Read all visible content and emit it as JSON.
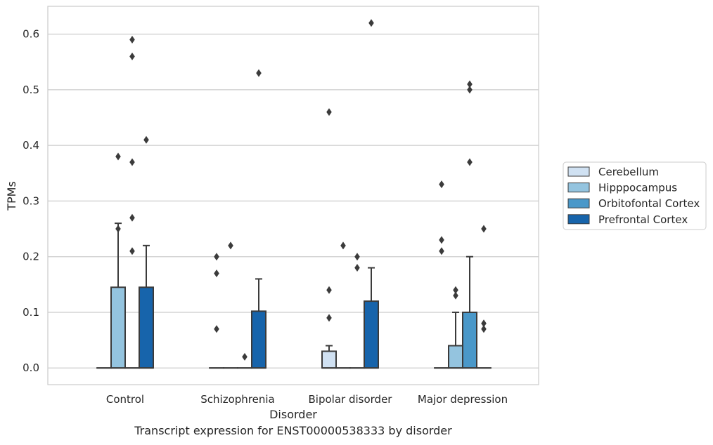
{
  "caption": "Transcript expression for ENST00000538333 by disorder",
  "chart_data": {
    "type": "box",
    "xlabel": "Disorder",
    "ylabel": "TPMs",
    "ylim": [
      -0.03,
      0.65
    ],
    "yticks": [
      0.0,
      0.1,
      0.2,
      0.3,
      0.4,
      0.5,
      0.6
    ],
    "ytick_labels": [
      "0.0",
      "0.1",
      "0.2",
      "0.3",
      "0.4",
      "0.5",
      "0.6"
    ],
    "grid": "horizontal",
    "legend_position": "right",
    "categories": [
      "Control",
      "Schizophrenia",
      "Bipolar disorder",
      "Major depression"
    ],
    "series": [
      {
        "name": "Cerebellum",
        "color": "#d0e1f2",
        "boxes": [
          {
            "q1": 0,
            "q3": 0,
            "median": 0,
            "whisker_low": 0,
            "whisker_high": 0,
            "outliers": []
          },
          {
            "q1": 0,
            "q3": 0,
            "median": 0,
            "whisker_low": 0,
            "whisker_high": 0,
            "outliers": [
              0.07,
              0.17,
              0.2
            ]
          },
          {
            "q1": 0,
            "q3": 0.03,
            "median": 0,
            "whisker_low": 0,
            "whisker_high": 0.04,
            "outliers": [
              0.09,
              0.14,
              0.46
            ]
          },
          {
            "q1": 0,
            "q3": 0,
            "median": 0,
            "whisker_low": 0,
            "whisker_high": 0,
            "outliers": [
              0.21,
              0.23,
              0.33
            ]
          }
        ]
      },
      {
        "name": "Hipppocampus",
        "color": "#94c4df",
        "boxes": [
          {
            "q1": 0,
            "q3": 0.145,
            "median": 0,
            "whisker_low": 0,
            "whisker_high": 0.26,
            "outliers": [
              0.25,
              0.38
            ]
          },
          {
            "q1": 0,
            "q3": 0,
            "median": 0,
            "whisker_low": 0,
            "whisker_high": 0,
            "outliers": [
              0.22
            ]
          },
          {
            "q1": 0,
            "q3": 0,
            "median": 0,
            "whisker_low": 0,
            "whisker_high": 0,
            "outliers": [
              0.22
            ]
          },
          {
            "q1": 0,
            "q3": 0.04,
            "median": 0,
            "whisker_low": 0,
            "whisker_high": 0.1,
            "outliers": [
              0.13,
              0.14
            ]
          }
        ]
      },
      {
        "name": "Orbitofontal Cortex",
        "color": "#4a98c9",
        "boxes": [
          {
            "q1": 0,
            "q3": 0,
            "median": 0,
            "whisker_low": 0,
            "whisker_high": 0,
            "outliers": [
              0.21,
              0.27,
              0.37,
              0.56,
              0.59
            ]
          },
          {
            "q1": 0,
            "q3": 0,
            "median": 0,
            "whisker_low": 0,
            "whisker_high": 0,
            "outliers": [
              0.02
            ]
          },
          {
            "q1": 0,
            "q3": 0,
            "median": 0,
            "whisker_low": 0,
            "whisker_high": 0,
            "outliers": [
              0.18,
              0.2
            ]
          },
          {
            "q1": 0,
            "q3": 0.1,
            "median": 0,
            "whisker_low": 0,
            "whisker_high": 0.2,
            "outliers": [
              0.37,
              0.5,
              0.51
            ]
          }
        ]
      },
      {
        "name": "Prefrontal Cortex",
        "color": "#1764ab",
        "boxes": [
          {
            "q1": 0,
            "q3": 0.145,
            "median": 0,
            "whisker_low": 0,
            "whisker_high": 0.22,
            "outliers": [
              0.41
            ]
          },
          {
            "q1": 0,
            "q3": 0.102,
            "median": 0,
            "whisker_low": 0,
            "whisker_high": 0.16,
            "outliers": [
              0.53
            ]
          },
          {
            "q1": 0,
            "q3": 0.12,
            "median": 0,
            "whisker_low": 0,
            "whisker_high": 0.18,
            "outliers": [
              0.62
            ]
          },
          {
            "q1": 0,
            "q3": 0,
            "median": 0,
            "whisker_low": 0,
            "whisker_high": 0,
            "outliers": [
              0.07,
              0.08,
              0.25
            ]
          }
        ]
      }
    ]
  }
}
